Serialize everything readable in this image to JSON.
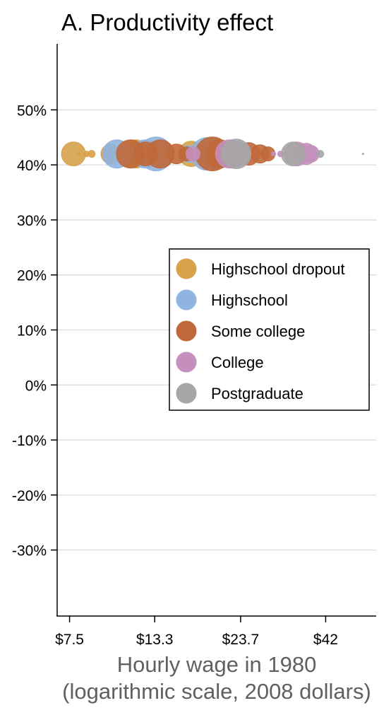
{
  "chart_data": {
    "type": "scatter",
    "title": "A. Productivity effect",
    "xlabel_lines": [
      "Hourly wage in 1980",
      "(logarithmic scale, 2008 dollars)"
    ],
    "ylabel": "",
    "x_scale": "log",
    "x_ticks": [
      {
        "value": 7.5,
        "label": "$7.5"
      },
      {
        "value": 13.3,
        "label": "$13.3"
      },
      {
        "value": 23.7,
        "label": "$23.7"
      },
      {
        "value": 42,
        "label": "$42"
      }
    ],
    "xlim": [
      6.9,
      59
    ],
    "y_ticks": [
      {
        "value": 50,
        "label": "50%"
      },
      {
        "value": 40,
        "label": "40%"
      },
      {
        "value": 30,
        "label": "30%"
      },
      {
        "value": 20,
        "label": "20%"
      },
      {
        "value": 10,
        "label": "10%"
      },
      {
        "value": 0,
        "label": "0%"
      },
      {
        "value": -10,
        "label": "-10%"
      },
      {
        "value": -20,
        "label": "-20%"
      },
      {
        "value": -30,
        "label": "-30%"
      }
    ],
    "ylim": [
      -42,
      62
    ],
    "grid": true,
    "legend_position": "right-center",
    "series": [
      {
        "name": "Highschool dropout",
        "color": "#d6a24a",
        "points": [
          {
            "x": 7.7,
            "y": 42,
            "size": 17
          },
          {
            "x": 8.0,
            "y": 42,
            "size": 2
          },
          {
            "x": 8.4,
            "y": 42,
            "size": 4
          },
          {
            "x": 8.7,
            "y": 42,
            "size": 5
          },
          {
            "x": 9.9,
            "y": 42,
            "size": 14
          },
          {
            "x": 11.1,
            "y": 42,
            "size": 18
          },
          {
            "x": 11.7,
            "y": 42,
            "size": 20
          },
          {
            "x": 14.2,
            "y": 42,
            "size": 14
          },
          {
            "x": 17.0,
            "y": 42,
            "size": 18
          },
          {
            "x": 20.2,
            "y": 42,
            "size": 14
          }
        ]
      },
      {
        "name": "Highschool",
        "color": "#8fb4df",
        "points": [
          {
            "x": 10.3,
            "y": 42,
            "size": 20
          },
          {
            "x": 12.5,
            "y": 42,
            "size": 20
          },
          {
            "x": 13.4,
            "y": 42,
            "size": 24
          },
          {
            "x": 16.7,
            "y": 42,
            "size": 12
          },
          {
            "x": 18.9,
            "y": 42,
            "size": 23
          },
          {
            "x": 19.7,
            "y": 42,
            "size": 22
          }
        ]
      },
      {
        "name": "Some college",
        "color": "#c0683a",
        "points": [
          {
            "x": 11.3,
            "y": 42,
            "size": 20
          },
          {
            "x": 12.5,
            "y": 42,
            "size": 17
          },
          {
            "x": 13.8,
            "y": 42,
            "size": 20
          },
          {
            "x": 15.4,
            "y": 42,
            "size": 14
          },
          {
            "x": 16.5,
            "y": 42,
            "size": 10
          },
          {
            "x": 19.6,
            "y": 42,
            "size": 24
          },
          {
            "x": 20.6,
            "y": 42,
            "size": 20
          },
          {
            "x": 25.0,
            "y": 42,
            "size": 16
          },
          {
            "x": 27.0,
            "y": 42,
            "size": 13
          },
          {
            "x": 28.5,
            "y": 42,
            "size": 10
          }
        ]
      },
      {
        "name": "College",
        "color": "#c48fbb",
        "points": [
          {
            "x": 17.2,
            "y": 42,
            "size": 10
          },
          {
            "x": 22.0,
            "y": 42,
            "size": 20
          },
          {
            "x": 23.0,
            "y": 42,
            "size": 18
          },
          {
            "x": 29.6,
            "y": 42,
            "size": 3
          },
          {
            "x": 31.0,
            "y": 42,
            "size": 4
          },
          {
            "x": 34.5,
            "y": 42,
            "size": 17
          },
          {
            "x": 36.8,
            "y": 42,
            "size": 15
          },
          {
            "x": 38.0,
            "y": 42,
            "size": 12
          }
        ]
      },
      {
        "name": "Postgraduate",
        "color": "#a6a6a6",
        "points": [
          {
            "x": 23.0,
            "y": 42,
            "size": 21
          },
          {
            "x": 33.8,
            "y": 42,
            "size": 17
          },
          {
            "x": 40.5,
            "y": 42,
            "size": 5
          },
          {
            "x": 54.0,
            "y": 42,
            "size": 1
          }
        ]
      }
    ]
  }
}
